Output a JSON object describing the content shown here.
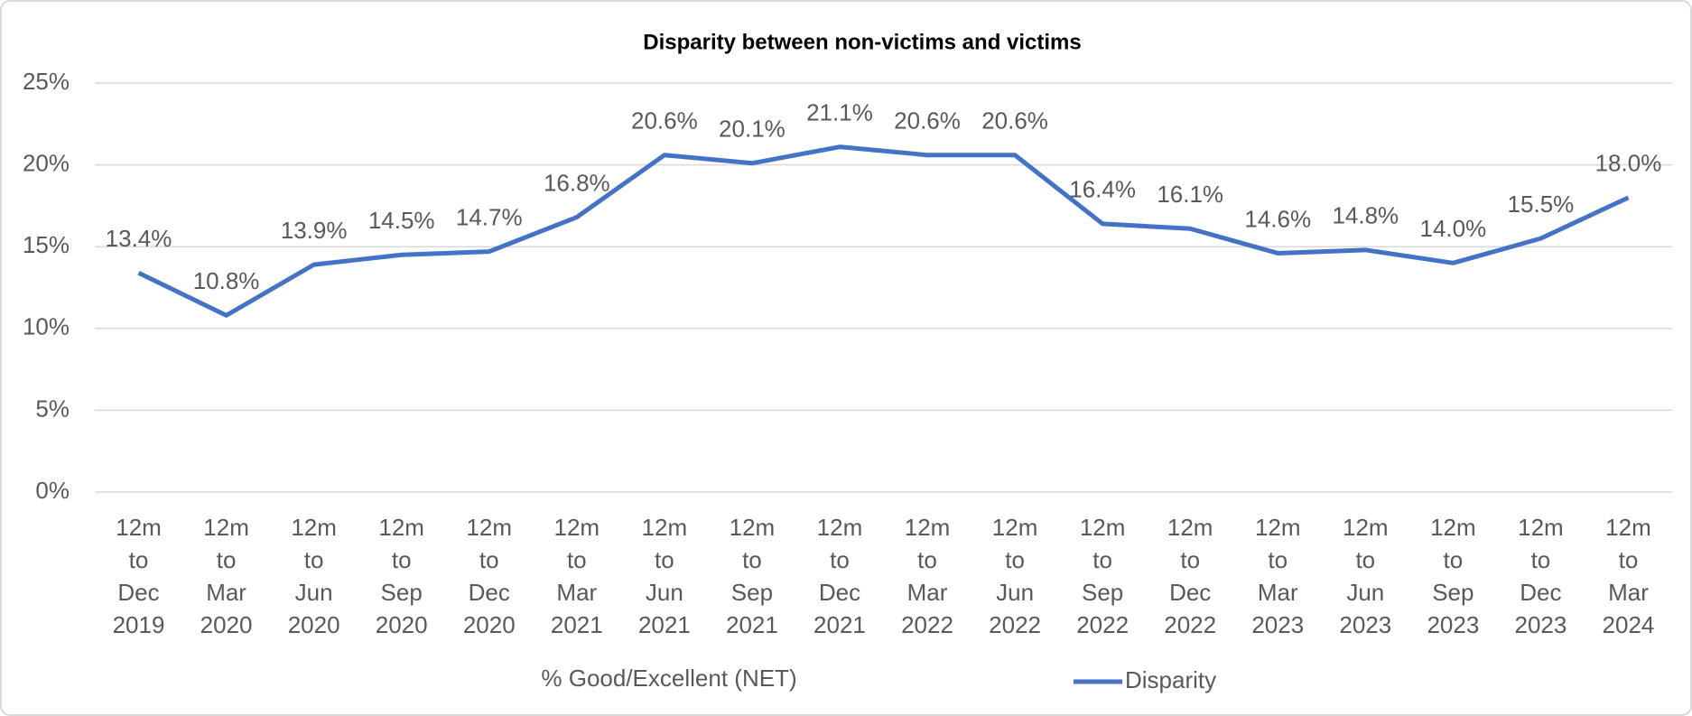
{
  "chart_data": {
    "type": "line",
    "title": "Disparity between non-victims and victims",
    "x_axis_label": "% Good/Excellent (NET)",
    "categories": [
      "12m to Dec 2019",
      "12m to Mar 2020",
      "12m to Jun 2020",
      "12m to Sep 2020",
      "12m to Dec 2020",
      "12m to Mar 2021",
      "12m to Jun 2021",
      "12m to Sep 2021",
      "12m to Dec 2021",
      "12m to Mar 2022",
      "12m to Jun 2022",
      "12m to Sep 2022",
      "12m to Dec 2022",
      "12m to Mar 2023",
      "12m to Jun 2023",
      "12m to Sep 2023",
      "12m to Dec 2023",
      "12m to Mar 2024"
    ],
    "series": [
      {
        "name": "Disparity",
        "color": "#4472c4",
        "values": [
          13.4,
          10.8,
          13.9,
          14.5,
          14.7,
          16.8,
          20.6,
          20.1,
          21.1,
          20.6,
          20.6,
          16.4,
          16.1,
          14.6,
          14.8,
          14.0,
          15.5,
          18.0
        ],
        "value_labels": [
          "13.4%",
          "10.8%",
          "13.9%",
          "14.5%",
          "14.7%",
          "16.8%",
          "20.6%",
          "20.1%",
          "21.1%",
          "20.6%",
          "20.6%",
          "16.4%",
          "16.1%",
          "14.6%",
          "14.8%",
          "14.0%",
          "15.5%",
          "18.0%"
        ]
      }
    ],
    "ylim": [
      0,
      25
    ],
    "yticks": [
      {
        "value": 0,
        "label": "0%"
      },
      {
        "value": 5,
        "label": "5%"
      },
      {
        "value": 10,
        "label": "10%"
      },
      {
        "value": 15,
        "label": "15%"
      },
      {
        "value": 20,
        "label": "20%"
      },
      {
        "value": 25,
        "label": "25%"
      }
    ],
    "grid": true,
    "legend": "bottom"
  }
}
